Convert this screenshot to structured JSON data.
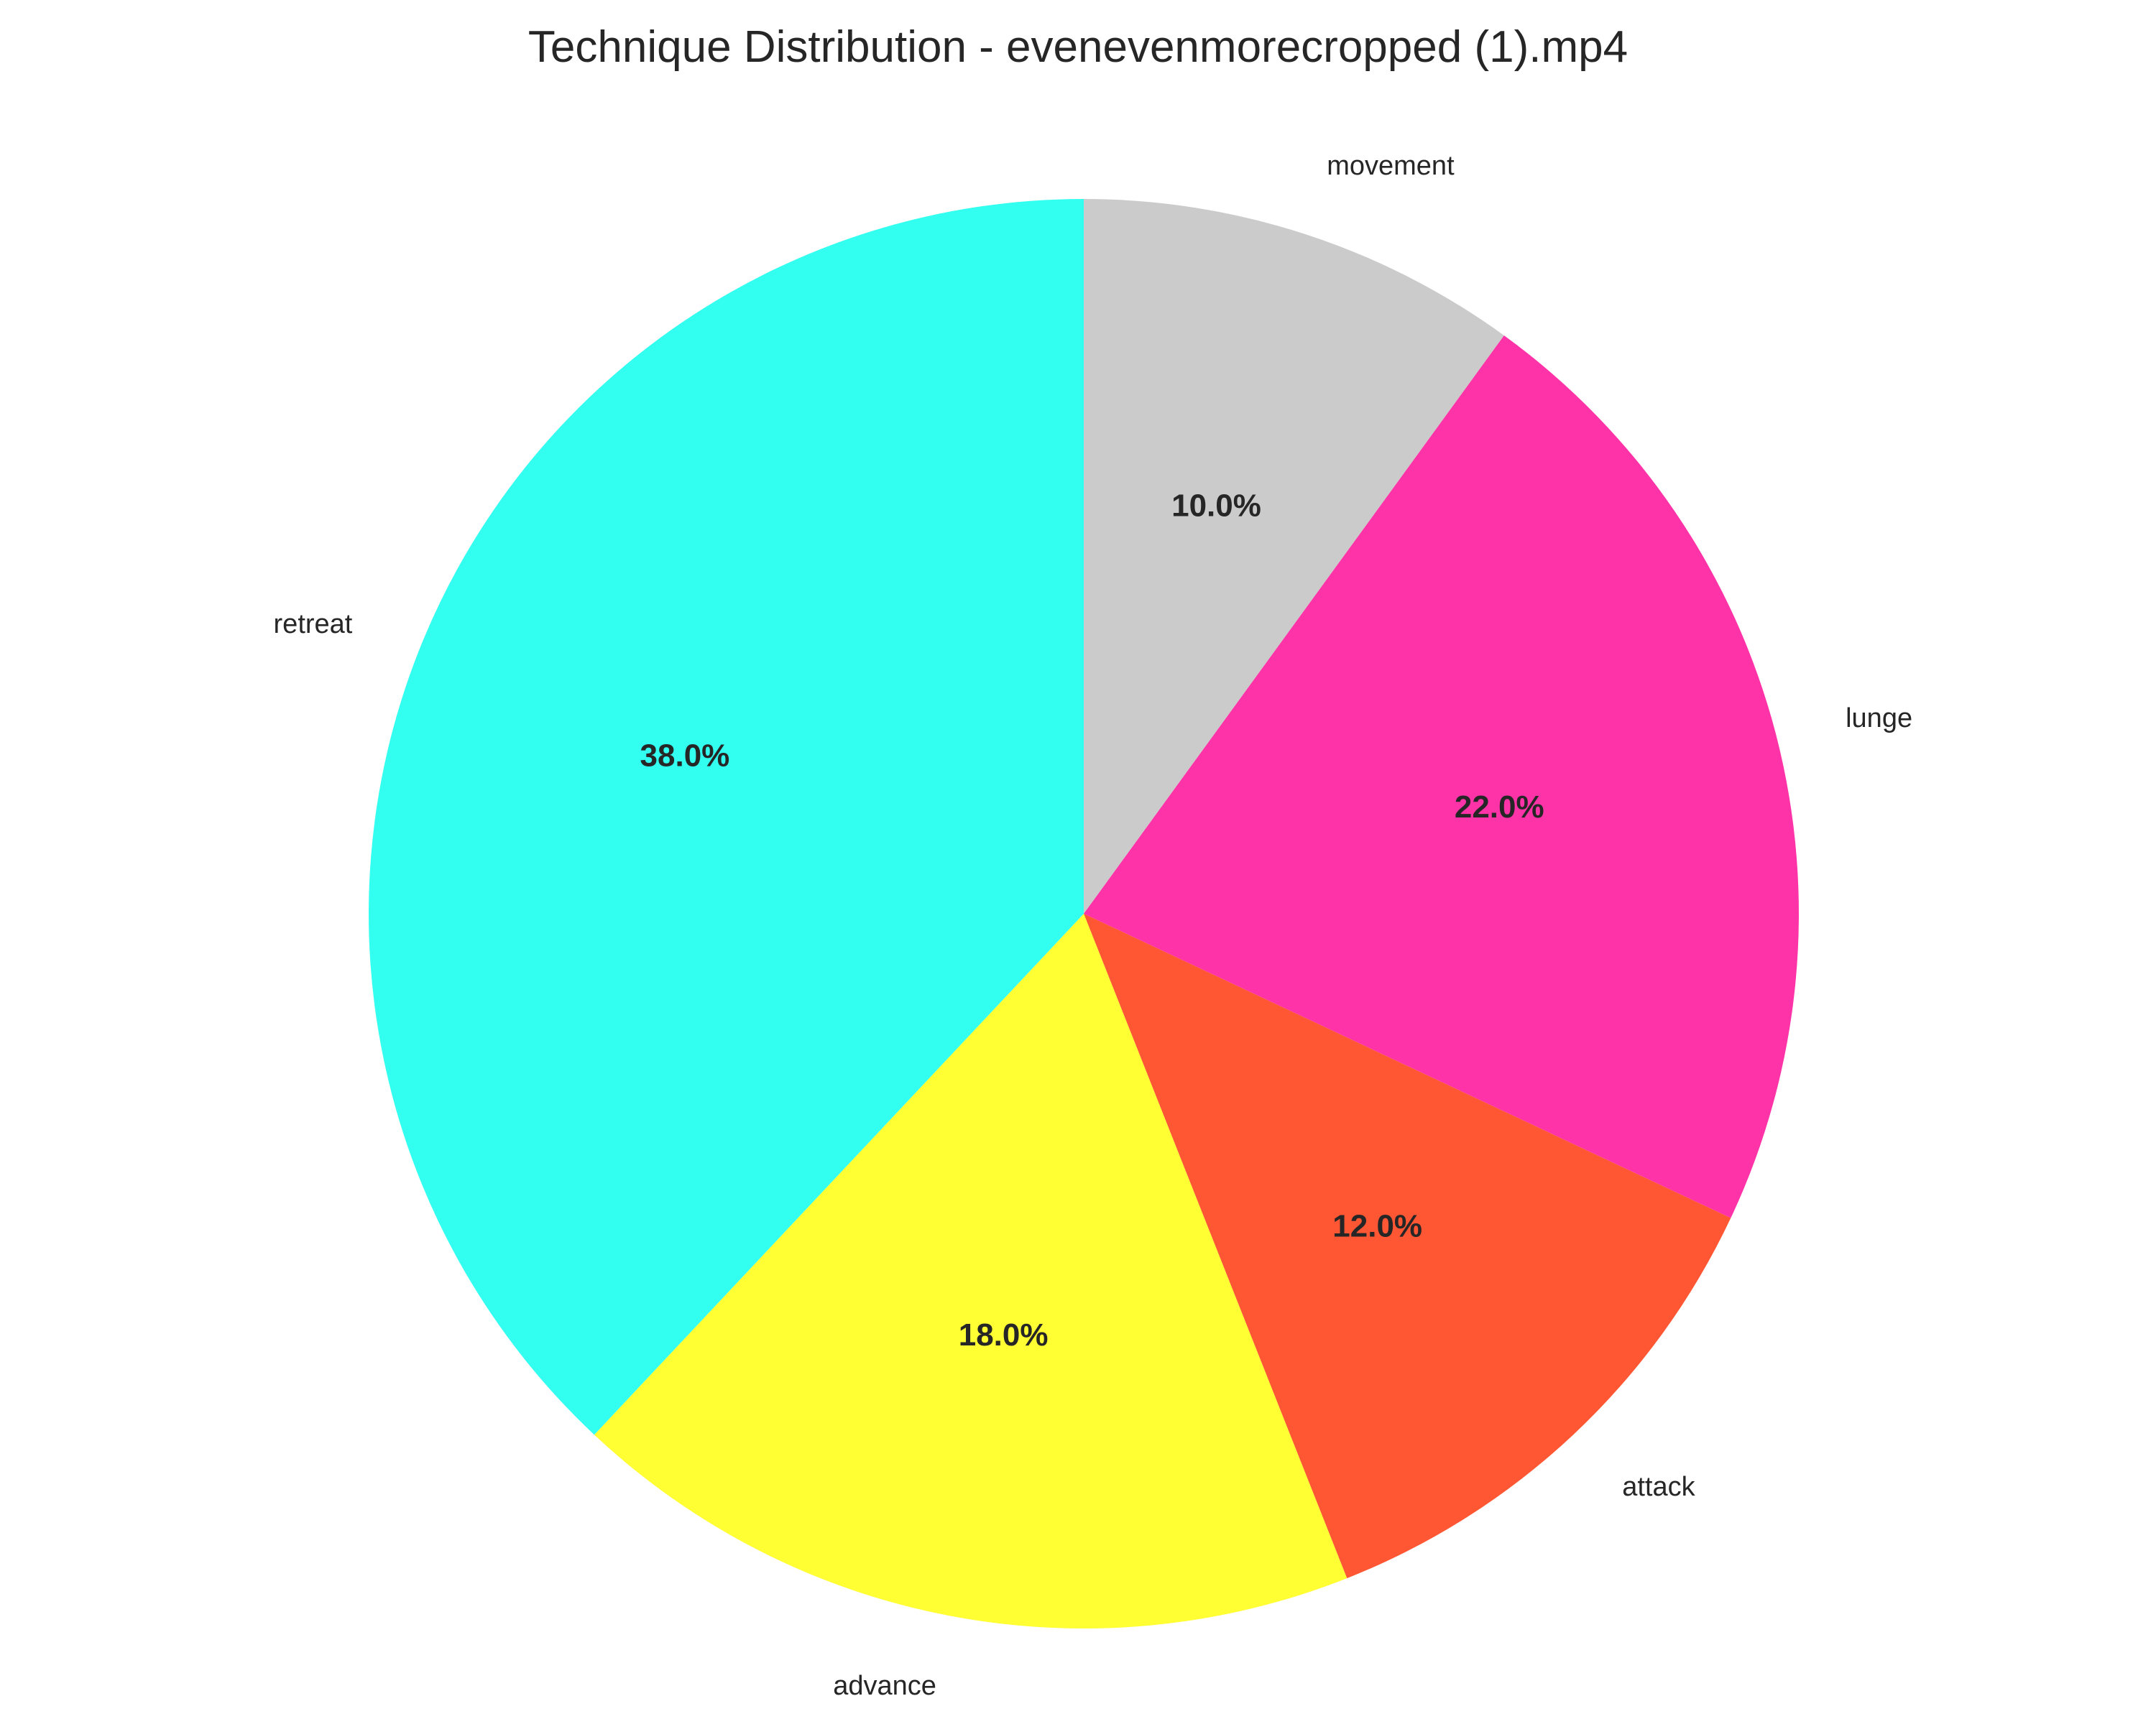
{
  "chart_data": {
    "type": "pie",
    "title": "Technique Distribution - evenevenmorecropped (1).mp4",
    "categories": [
      "movement",
      "lunge",
      "attack",
      "advance",
      "retreat"
    ],
    "values": [
      10.0,
      22.0,
      12.0,
      18.0,
      38.0
    ],
    "value_labels": [
      "10.0%",
      "22.0%",
      "12.0%",
      "18.0%",
      "38.0%"
    ],
    "colors": [
      "#cbcbcb",
      "#ff33a8",
      "#ff5733",
      "#ffff33",
      "#33fff0"
    ],
    "start_angle_deg": 90,
    "direction": "clockwise",
    "legend": "none"
  }
}
